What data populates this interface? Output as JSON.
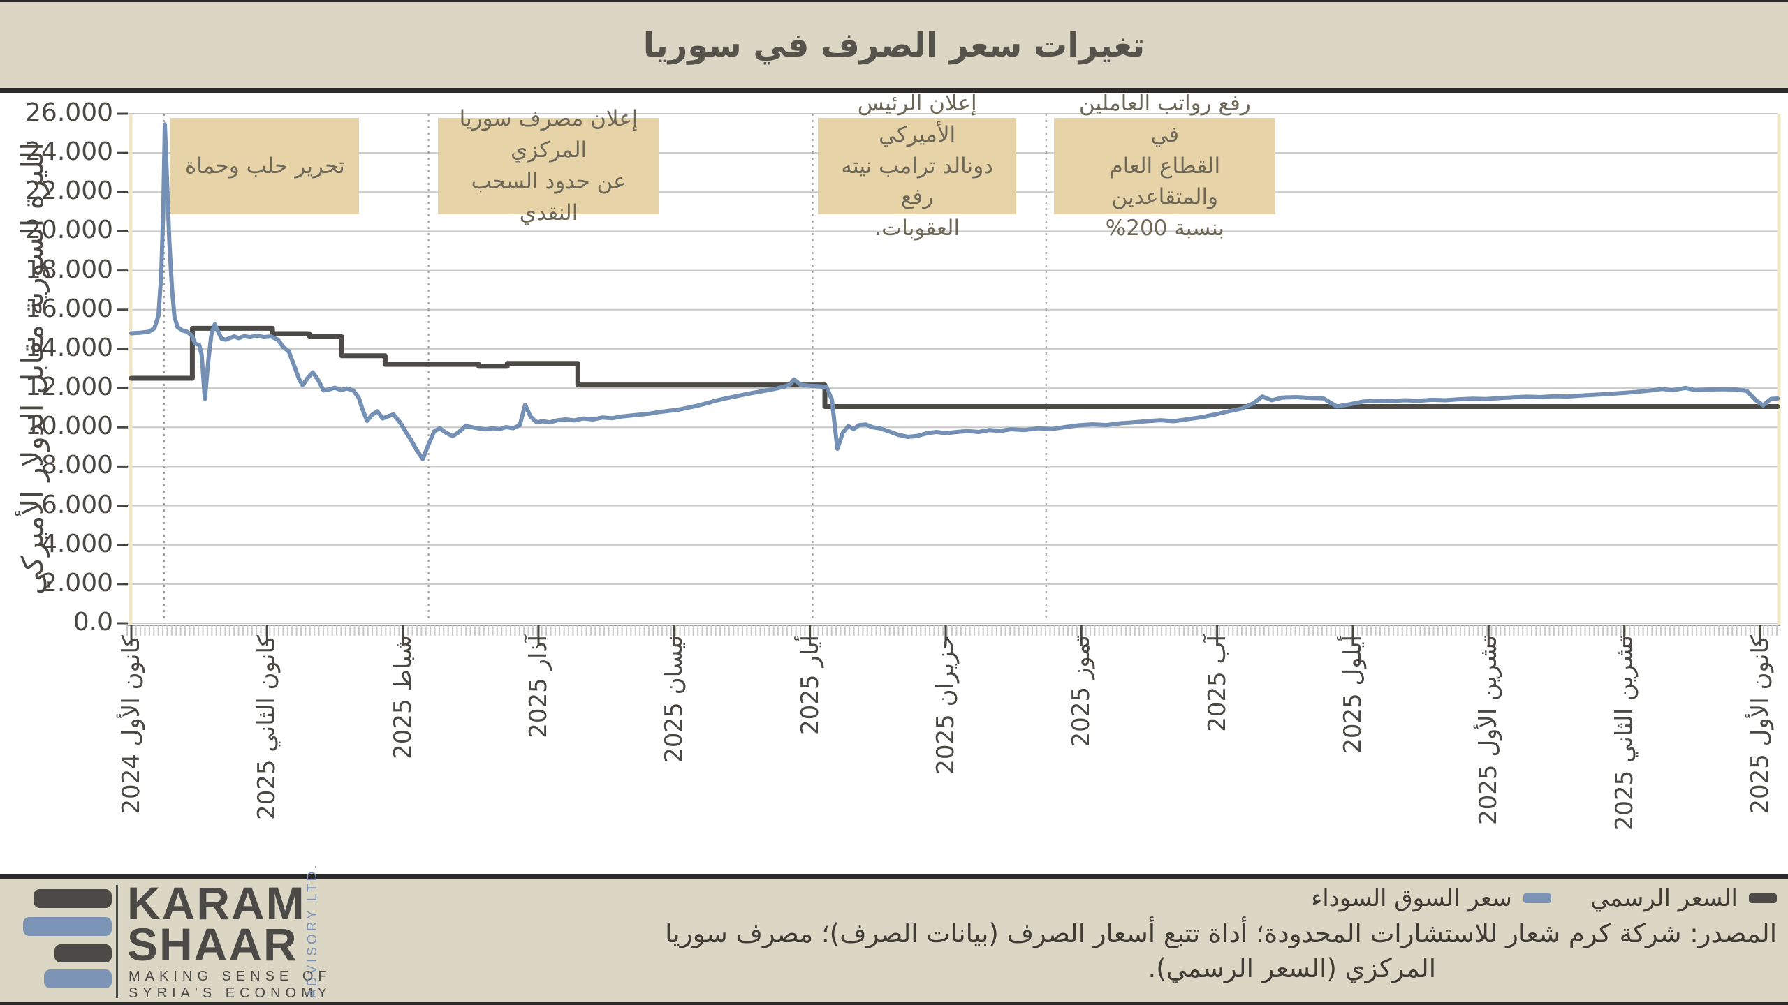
{
  "header": {
    "title": "تغيرات سعر الصرف في سوريا"
  },
  "chart_data": {
    "type": "line",
    "title": "تغيرات سعر الصرف في سوريا",
    "ylabel": "الليرة السورية مقابل الدولار الأميركي",
    "ylim": [
      0,
      26000
    ],
    "ytick_step": 2000,
    "ytick_labels_top_to_bottom": [
      "26.000",
      "24.000",
      "22.000",
      "20.000",
      "18.000",
      "16.000",
      "14.000",
      "12.000",
      "10.000",
      "8.000",
      "6.000",
      "4.000",
      "2.000",
      "0.0"
    ],
    "x_tick_labels": [
      "كانون الأول 2024",
      "كانون الثاني 2025",
      "شباط 2025",
      "آذار 2025",
      "نيسان 2025",
      "أيار 2025",
      "حزيران 2025",
      "تموز 2025",
      "آب 2025",
      "أيلول 2025",
      "تشرين الأول 2025",
      "تشرين الثاني 2025",
      "كانون الأول 2025"
    ],
    "grid": true,
    "legend_position": "bottom-right",
    "months_total": 12.13,
    "events": [
      {
        "month": 0.242,
        "label": "تحرير حلب وحماة"
      },
      {
        "month": 2.19,
        "label": "إعلان مصرف سوريا المركزي عن حدود السحب النقدي"
      },
      {
        "month": 5.02,
        "label": "إعلان الرئيس الأميركي دونالد ترامب نيته رفع العقوبات."
      },
      {
        "month": 6.74,
        "label": "رفع رواتب العاملين في القطاع العام والمتقاعدين بنسبة 200%"
      }
    ],
    "annotations": [
      {
        "text": "تحرير حلب وحماة",
        "x0": 0.29,
        "x1": 1.68
      },
      {
        "text": "إعلان مصرف سوريا المركزي\nعن حدود السحب النقدي",
        "x0": 2.26,
        "x1": 3.89
      },
      {
        "text": "إعلان الرئيس الأميركي\nدونالد ترامب نيته رفع\nالعقوبات.",
        "x0": 5.06,
        "x1": 6.52
      },
      {
        "text": "رفع رواتب العاملين في\nالقطاع العام والمتقاعدين\nبنسبة 200%",
        "x0": 6.8,
        "x1": 8.43
      }
    ],
    "series": [
      {
        "name": "السعر الرسمي",
        "color": "#4b4a46",
        "width": 7,
        "points": [
          [
            0,
            12500
          ],
          [
            0.45,
            12500
          ],
          [
            0.45,
            15050
          ],
          [
            1.04,
            15050
          ],
          [
            1.04,
            14780
          ],
          [
            1.31,
            14780
          ],
          [
            1.31,
            14620
          ],
          [
            1.55,
            14620
          ],
          [
            1.55,
            13650
          ],
          [
            1.87,
            13650
          ],
          [
            1.87,
            13210
          ],
          [
            2.56,
            13210
          ],
          [
            2.56,
            13110
          ],
          [
            2.77,
            13110
          ],
          [
            2.77,
            13260
          ],
          [
            3.29,
            13260
          ],
          [
            3.29,
            12160
          ],
          [
            5.11,
            12160
          ],
          [
            5.11,
            11060
          ],
          [
            12.13,
            11060
          ]
        ]
      },
      {
        "name": "سعر السوق السوداء",
        "color": "#7590b5",
        "width": 6,
        "points": [
          [
            0,
            14800
          ],
          [
            0.07,
            14830
          ],
          [
            0.13,
            14880
          ],
          [
            0.17,
            15050
          ],
          [
            0.2,
            15700
          ],
          [
            0.22,
            17800
          ],
          [
            0.235,
            21000
          ],
          [
            0.247,
            25450
          ],
          [
            0.263,
            22600
          ],
          [
            0.28,
            19500
          ],
          [
            0.3,
            17050
          ],
          [
            0.318,
            15650
          ],
          [
            0.34,
            15120
          ],
          [
            0.375,
            14950
          ],
          [
            0.41,
            14880
          ],
          [
            0.445,
            14690
          ],
          [
            0.47,
            14270
          ],
          [
            0.5,
            14200
          ],
          [
            0.518,
            13700
          ],
          [
            0.542,
            11450
          ],
          [
            0.568,
            13450
          ],
          [
            0.592,
            14820
          ],
          [
            0.615,
            15250
          ],
          [
            0.64,
            14870
          ],
          [
            0.667,
            14510
          ],
          [
            0.697,
            14470
          ],
          [
            0.727,
            14560
          ],
          [
            0.757,
            14640
          ],
          [
            0.792,
            14550
          ],
          [
            0.83,
            14650
          ],
          [
            0.877,
            14600
          ],
          [
            0.925,
            14680
          ],
          [
            0.975,
            14600
          ],
          [
            1.03,
            14640
          ],
          [
            1.08,
            14470
          ],
          [
            1.12,
            14090
          ],
          [
            1.16,
            13880
          ],
          [
            1.2,
            13140
          ],
          [
            1.237,
            12440
          ],
          [
            1.262,
            12140
          ],
          [
            1.3,
            12520
          ],
          [
            1.337,
            12800
          ],
          [
            1.377,
            12410
          ],
          [
            1.417,
            11880
          ],
          [
            1.457,
            11930
          ],
          [
            1.5,
            12020
          ],
          [
            1.545,
            11900
          ],
          [
            1.59,
            11980
          ],
          [
            1.637,
            11870
          ],
          [
            1.677,
            11490
          ],
          [
            1.702,
            10940
          ],
          [
            1.737,
            10330
          ],
          [
            1.772,
            10620
          ],
          [
            1.812,
            10820
          ],
          [
            1.852,
            10450
          ],
          [
            1.892,
            10560
          ],
          [
            1.932,
            10660
          ],
          [
            1.982,
            10230
          ],
          [
            2.022,
            9770
          ],
          [
            2.062,
            9340
          ],
          [
            2.102,
            8840
          ],
          [
            2.147,
            8380
          ],
          [
            2.192,
            9160
          ],
          [
            2.232,
            9790
          ],
          [
            2.272,
            9950
          ],
          [
            2.322,
            9710
          ],
          [
            2.367,
            9550
          ],
          [
            2.412,
            9740
          ],
          [
            2.462,
            10060
          ],
          [
            2.512,
            10000
          ],
          [
            2.562,
            9940
          ],
          [
            2.612,
            9890
          ],
          [
            2.662,
            9950
          ],
          [
            2.712,
            9900
          ],
          [
            2.762,
            10010
          ],
          [
            2.812,
            9950
          ],
          [
            2.862,
            10100
          ],
          [
            2.902,
            11150
          ],
          [
            2.942,
            10540
          ],
          [
            2.987,
            10250
          ],
          [
            3.032,
            10310
          ],
          [
            3.082,
            10250
          ],
          [
            3.142,
            10360
          ],
          [
            3.202,
            10400
          ],
          [
            3.262,
            10350
          ],
          [
            3.332,
            10450
          ],
          [
            3.402,
            10400
          ],
          [
            3.472,
            10500
          ],
          [
            3.542,
            10460
          ],
          [
            3.612,
            10550
          ],
          [
            3.682,
            10600
          ],
          [
            3.752,
            10650
          ],
          [
            3.822,
            10700
          ],
          [
            3.892,
            10780
          ],
          [
            3.962,
            10840
          ],
          [
            4.032,
            10900
          ],
          [
            4.102,
            11000
          ],
          [
            4.172,
            11100
          ],
          [
            4.242,
            11230
          ],
          [
            4.312,
            11370
          ],
          [
            4.382,
            11480
          ],
          [
            4.452,
            11580
          ],
          [
            4.522,
            11680
          ],
          [
            4.592,
            11770
          ],
          [
            4.662,
            11860
          ],
          [
            4.732,
            11950
          ],
          [
            4.802,
            12060
          ],
          [
            4.852,
            12180
          ],
          [
            4.882,
            12440
          ],
          [
            4.932,
            12170
          ],
          [
            4.992,
            12120
          ],
          [
            5.052,
            12100
          ],
          [
            5.122,
            12060
          ],
          [
            5.162,
            11400
          ],
          [
            5.202,
            8900
          ],
          [
            5.242,
            9720
          ],
          [
            5.282,
            10060
          ],
          [
            5.322,
            9910
          ],
          [
            5.362,
            10110
          ],
          [
            5.412,
            10140
          ],
          [
            5.462,
            10000
          ],
          [
            5.512,
            9950
          ],
          [
            5.582,
            9790
          ],
          [
            5.652,
            9610
          ],
          [
            5.722,
            9510
          ],
          [
            5.792,
            9560
          ],
          [
            5.862,
            9700
          ],
          [
            5.932,
            9760
          ],
          [
            6.002,
            9700
          ],
          [
            6.082,
            9760
          ],
          [
            6.162,
            9810
          ],
          [
            6.242,
            9760
          ],
          [
            6.322,
            9860
          ],
          [
            6.402,
            9810
          ],
          [
            6.482,
            9900
          ],
          [
            6.582,
            9860
          ],
          [
            6.682,
            9950
          ],
          [
            6.782,
            9910
          ],
          [
            6.882,
            10010
          ],
          [
            6.982,
            10100
          ],
          [
            7.082,
            10150
          ],
          [
            7.182,
            10110
          ],
          [
            7.282,
            10200
          ],
          [
            7.382,
            10250
          ],
          [
            7.482,
            10310
          ],
          [
            7.582,
            10360
          ],
          [
            7.682,
            10310
          ],
          [
            7.782,
            10410
          ],
          [
            7.882,
            10510
          ],
          [
            7.982,
            10650
          ],
          [
            8.082,
            10810
          ],
          [
            8.182,
            10960
          ],
          [
            8.272,
            11240
          ],
          [
            8.332,
            11570
          ],
          [
            8.402,
            11380
          ],
          [
            8.482,
            11520
          ],
          [
            8.582,
            11540
          ],
          [
            8.682,
            11500
          ],
          [
            8.782,
            11480
          ],
          [
            8.882,
            11060
          ],
          [
            8.982,
            11180
          ],
          [
            9.082,
            11320
          ],
          [
            9.182,
            11350
          ],
          [
            9.282,
            11330
          ],
          [
            9.382,
            11380
          ],
          [
            9.482,
            11350
          ],
          [
            9.582,
            11400
          ],
          [
            9.682,
            11380
          ],
          [
            9.782,
            11430
          ],
          [
            9.882,
            11460
          ],
          [
            9.982,
            11440
          ],
          [
            10.082,
            11490
          ],
          [
            10.182,
            11530
          ],
          [
            10.282,
            11560
          ],
          [
            10.382,
            11540
          ],
          [
            10.482,
            11590
          ],
          [
            10.582,
            11570
          ],
          [
            10.682,
            11620
          ],
          [
            10.782,
            11660
          ],
          [
            10.882,
            11700
          ],
          [
            10.982,
            11750
          ],
          [
            11.082,
            11800
          ],
          [
            11.182,
            11870
          ],
          [
            11.282,
            11960
          ],
          [
            11.352,
            11890
          ],
          [
            11.452,
            12010
          ],
          [
            11.522,
            11900
          ],
          [
            11.622,
            11930
          ],
          [
            11.722,
            11940
          ],
          [
            11.822,
            11930
          ],
          [
            11.902,
            11860
          ],
          [
            11.972,
            11370
          ],
          [
            12.022,
            11120
          ],
          [
            12.082,
            11450
          ],
          [
            12.13,
            11470
          ]
        ]
      }
    ],
    "colors": {
      "grid": "#c9c9c9",
      "event_line": "#9a9a9a",
      "axis_edge": "#f1e6c6",
      "tick_major": "#4a4843",
      "tick_minor": "#c9c9c9",
      "annotation_bg": "#e6d4a8"
    }
  },
  "legend": {
    "official_label": "السعر الرسمي",
    "official_color": "#4b4a46",
    "black_market_label": "سعر السوق السوداء",
    "black_market_color": "#7b93b5"
  },
  "source": {
    "line1": "المصدر: شركة كرم شعار للاستشارات المحدودة؛ أداة تتبع أسعار الصرف (بيانات الصرف)؛ مصرف سوريا",
    "line2": "المركزي (السعر الرسمي)."
  },
  "logo": {
    "name_line1": "KARAM",
    "name_line2": "SHAAR",
    "tagline": "MAKING SENSE OF\nSYRIA'S ECONOMY",
    "vertical_text": "ADVISORY LTD.",
    "bar_dark": "#4b4a46",
    "bar_blue": "#7b93b5"
  }
}
